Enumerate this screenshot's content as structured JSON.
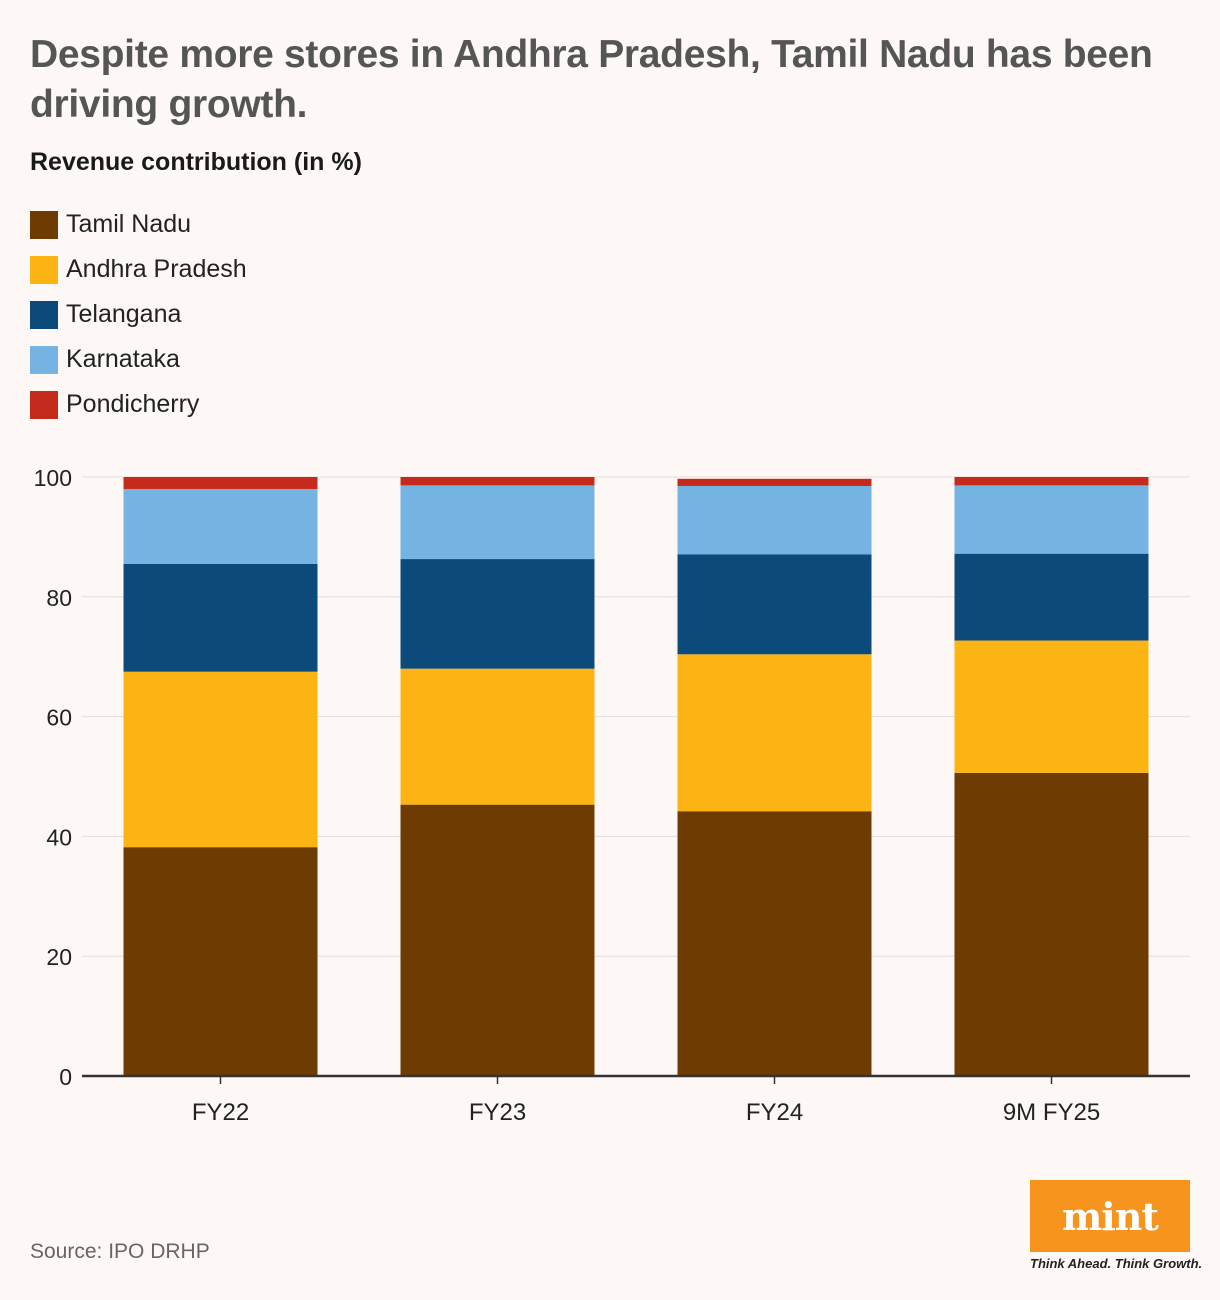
{
  "header": {
    "title": "Despite more stores in Andhra Pradesh, Tamil Nadu has been driving growth.",
    "subtitle": "Revenue contribution (in %)"
  },
  "legend": [
    {
      "label": "Tamil Nadu",
      "color": "#6e3b02"
    },
    {
      "label": "Andhra Pradesh",
      "color": "#fcb415"
    },
    {
      "label": "Telangana",
      "color": "#0b4a7b"
    },
    {
      "label": "Karnataka",
      "color": "#74b3e2"
    },
    {
      "label": "Pondicherry",
      "color": "#c52b1c"
    }
  ],
  "chart_data": {
    "type": "bar",
    "stacked": true,
    "categories": [
      "FY22",
      "FY23",
      "FY24",
      "9M FY25"
    ],
    "series": [
      {
        "name": "Tamil Nadu",
        "color": "#6e3b02",
        "values": [
          38.2,
          45.3,
          44.2,
          50.6
        ]
      },
      {
        "name": "Andhra Pradesh",
        "color": "#fcb415",
        "values": [
          29.3,
          22.7,
          26.2,
          22.1
        ]
      },
      {
        "name": "Telangana",
        "color": "#0b4a7b",
        "values": [
          18.0,
          18.3,
          16.7,
          14.5
        ]
      },
      {
        "name": "Karnataka",
        "color": "#74b3e2",
        "values": [
          12.5,
          12.3,
          11.4,
          11.4
        ]
      },
      {
        "name": "Pondicherry",
        "color": "#c52b1c",
        "values": [
          2.0,
          1.4,
          1.2,
          1.4
        ]
      }
    ],
    "yticks": [
      "0",
      "20",
      "40",
      "60",
      "80",
      "100"
    ],
    "ylim": [
      0,
      100
    ],
    "grid": true
  },
  "footer": {
    "source": "Source: IPO DRHP",
    "logo_text": "mint",
    "tagline": "Think Ahead. Think Growth."
  }
}
